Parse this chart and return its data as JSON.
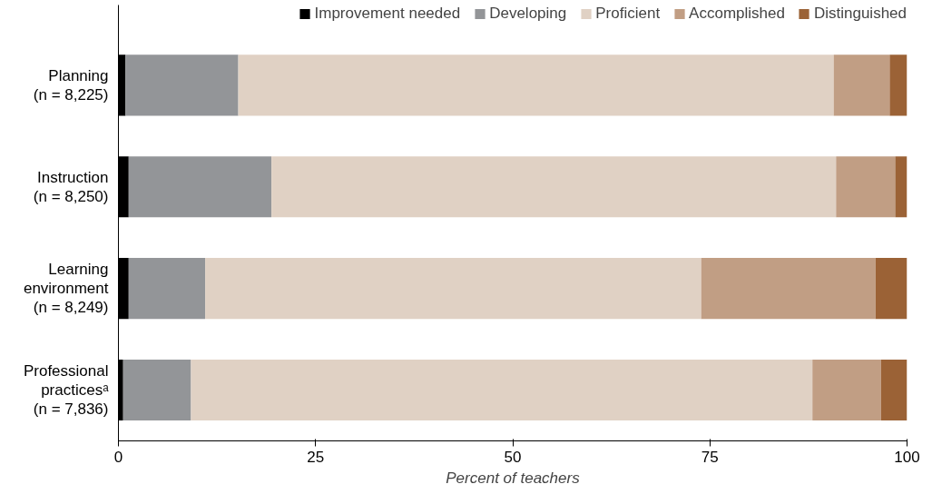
{
  "chart_data": {
    "type": "bar",
    "orientation": "horizontal",
    "stacked": true,
    "categories": [
      "Planning\n(n = 8,225)",
      "Instruction\n(n = 8,250)",
      "Learning\nenvironment\n(n = 8,249)",
      "Professional\npracticesᵃ\n(n = 7,836)"
    ],
    "series": [
      {
        "name": "Improvement needed",
        "color": "#000000",
        "values": [
          0.9,
          1.3,
          1.3,
          0.6
        ]
      },
      {
        "name": "Developing",
        "color": "#939598",
        "values": [
          14.3,
          18.1,
          9.7,
          8.6
        ]
      },
      {
        "name": "Proficient",
        "color": "#e0d1c4",
        "values": [
          75.5,
          71.6,
          62.9,
          78.8
        ]
      },
      {
        "name": "Accomplished",
        "color": "#c19e84",
        "values": [
          7.1,
          7.5,
          22.1,
          8.7
        ]
      },
      {
        "name": "Distinguished",
        "color": "#9b6236",
        "values": [
          2.2,
          1.5,
          4.0,
          3.3
        ]
      }
    ],
    "xlim": [
      0,
      100
    ],
    "xticks": [
      0,
      25,
      50,
      75,
      100
    ],
    "xlabel": "Percent of teachers",
    "legend": "top",
    "grid": false
  }
}
